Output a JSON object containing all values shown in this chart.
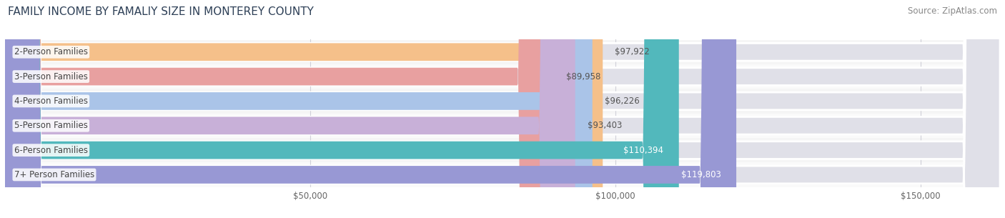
{
  "title": "FAMILY INCOME BY FAMALIY SIZE IN MONTEREY COUNTY",
  "source": "Source: ZipAtlas.com",
  "categories": [
    "2-Person Families",
    "3-Person Families",
    "4-Person Families",
    "5-Person Families",
    "6-Person Families",
    "7+ Person Families"
  ],
  "values": [
    97922,
    89958,
    96226,
    93403,
    110394,
    119803
  ],
  "bar_colors": [
    "#f5c08a",
    "#e8a0a0",
    "#aac4e8",
    "#c8b0d8",
    "#52b8bc",
    "#9898d4"
  ],
  "value_labels": [
    "$97,922",
    "$89,958",
    "$96,226",
    "$93,403",
    "$110,394",
    "$119,803"
  ],
  "label_dark": [
    true,
    true,
    true,
    true,
    false,
    false
  ],
  "xlim": [
    0,
    163000
  ],
  "xtick_vals": [
    50000,
    100000,
    150000
  ],
  "xtick_labels": [
    "$50,000",
    "$100,000",
    "$150,000"
  ],
  "title_fontsize": 11,
  "source_fontsize": 8.5,
  "bar_label_fontsize": 8.5,
  "value_fontsize": 8.5,
  "background_color": "#ffffff",
  "bar_height": 0.72,
  "row_bg_colors": [
    "#f5f5f5",
    "#fafafa"
  ],
  "bar_bg_color": "#e0e0e8",
  "grid_color": "#d0d0d8",
  "label_bg_color": "#ffffff",
  "dark_text": "#555555",
  "white_text": "#ffffff"
}
